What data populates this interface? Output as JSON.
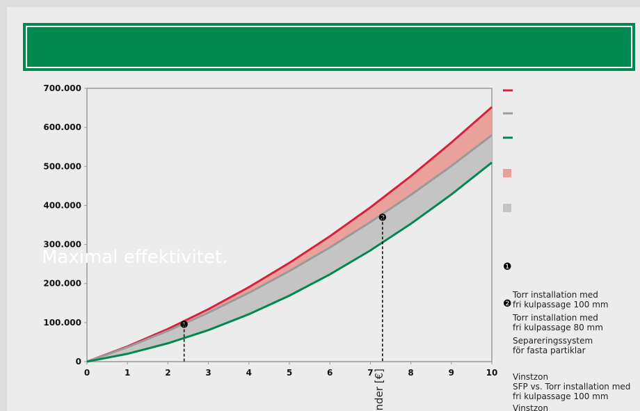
{
  "chart_data": {
    "type": "line",
    "title": "Maximal effektivitet.",
    "y_label": "nder [€]",
    "x": [
      0,
      1,
      2,
      3,
      4,
      5,
      6,
      7,
      8,
      9,
      10
    ],
    "series": [
      {
        "name": "Torr installation med\nfri kulpassage 100 mm",
        "color": "#d8203e",
        "values": [
          0,
          38900,
          83700,
          134300,
          190700,
          253000,
          321000,
          395000,
          475000,
          561000,
          652000
        ]
      },
      {
        "name": "Torr installation med\nfri kulpassage 80 mm",
        "color": "#9a9a9a",
        "values": [
          0,
          37100,
          78900,
          125300,
          176300,
          232000,
          292300,
          357300,
          427000,
          501100,
          580000
        ]
      },
      {
        "name": "Separeringssystem\nför fasta partiklar",
        "color": "#00884f",
        "values": [
          0,
          20000,
          46960,
          80760,
          121440,
          169000,
          223400,
          284800,
          353000,
          428000,
          510000
        ]
      }
    ],
    "areas": [
      {
        "name": "Vinstzon",
        "note": "SFP vs. Torr installation med\nfri kulpassage 100 mm",
        "color": "#e9a29b",
        "between": [
          0,
          1
        ]
      },
      {
        "name": "Vinstzon",
        "color": "#c4c4c4",
        "between": [
          1,
          2
        ]
      }
    ],
    "annotations": [
      {
        "label": "❶",
        "x": 2.4,
        "y": 95000
      },
      {
        "label": "❷",
        "x": 7.3,
        "y": 370000
      }
    ],
    "xlim": [
      0,
      10
    ],
    "xticks": [
      0,
      1,
      2,
      3,
      4,
      5,
      6,
      7,
      8,
      9,
      10
    ],
    "ylim": [
      0,
      700000
    ],
    "yticks": [
      0,
      {
        "value": 100000,
        "label": "100.000"
      },
      {
        "value": 200000,
        "label": "200.000"
      },
      {
        "value": 300000,
        "label": "300.000"
      },
      {
        "value": 400000,
        "label": "400.000"
      },
      {
        "value": 500000,
        "label": "500.000"
      },
      {
        "value": 600000,
        "label": "600.000"
      },
      {
        "value": 700000,
        "label": "700.000"
      }
    ]
  }
}
